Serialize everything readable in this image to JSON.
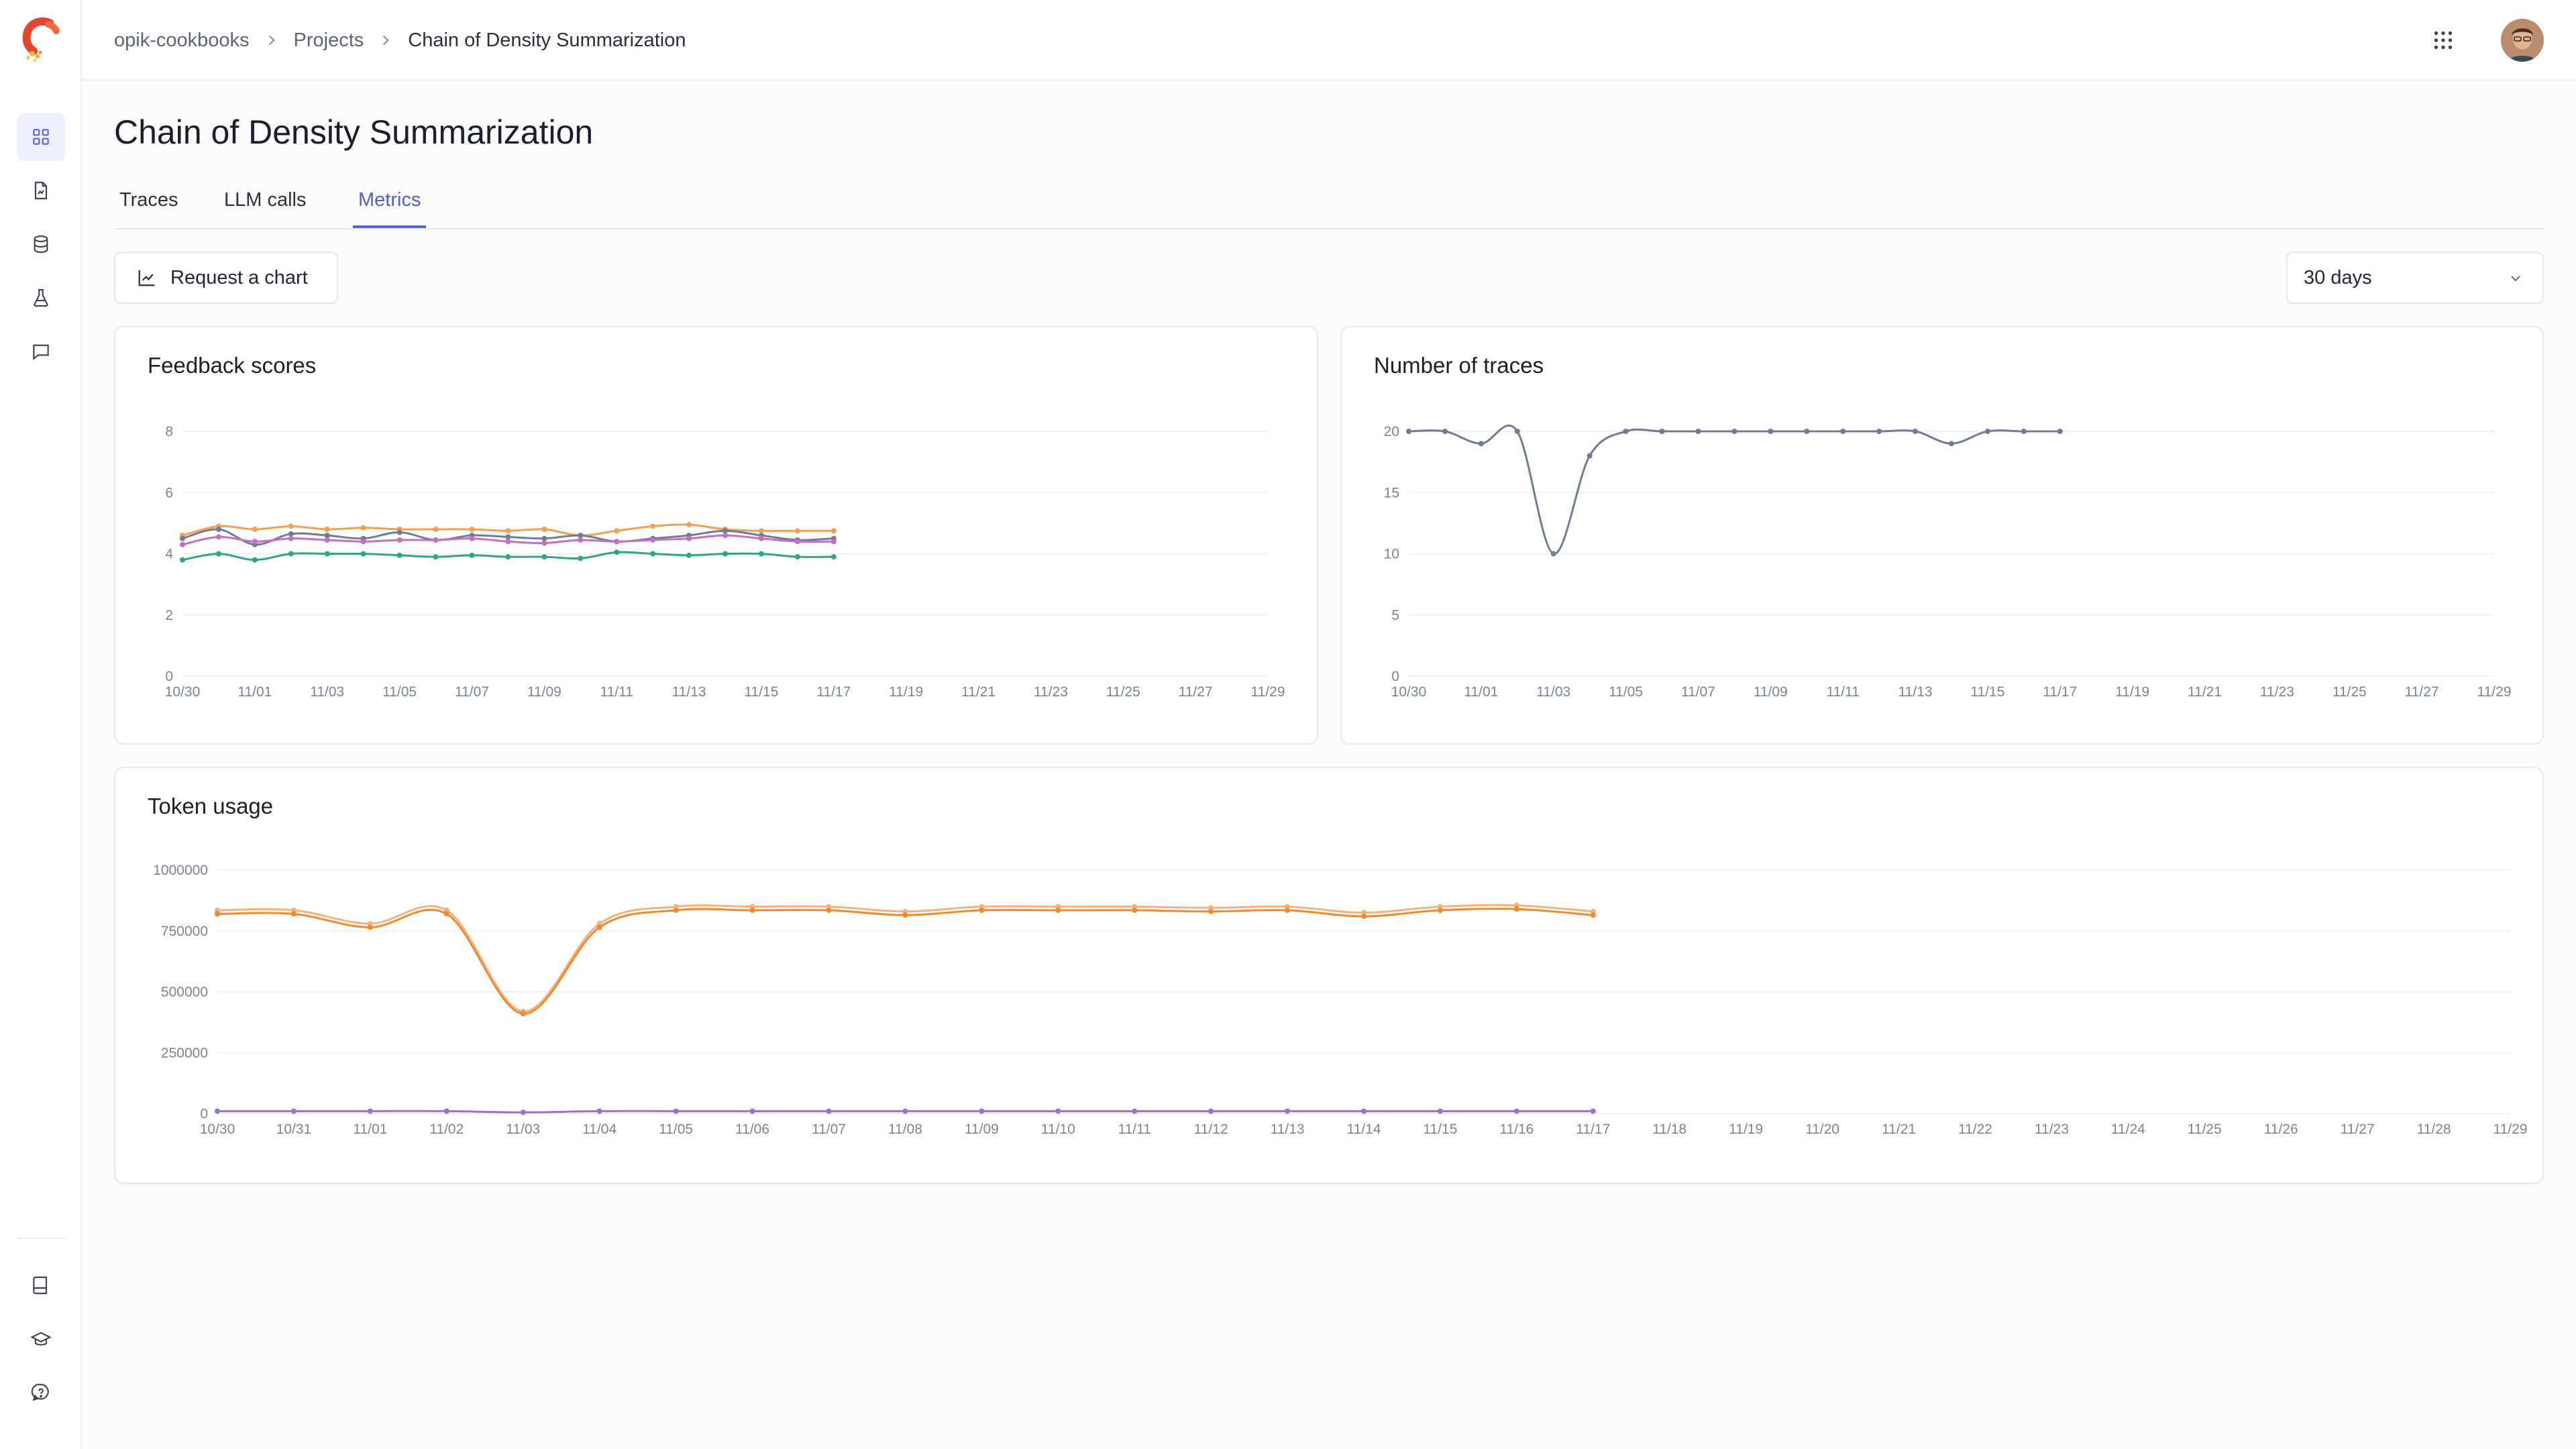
{
  "breadcrumb": {
    "workspace": "opik-cookbooks",
    "section": "Projects",
    "current": "Chain of Density Summarization"
  },
  "page": {
    "title": "Chain of Density Summarization"
  },
  "tabs": [
    {
      "label": "Traces"
    },
    {
      "label": "LLM calls"
    },
    {
      "label": "Metrics",
      "active": true
    }
  ],
  "toolbar": {
    "request_chart_label": "Request a chart",
    "range_value": "30 days"
  },
  "sidebar": {
    "items": [
      {
        "icon": "dashboard-grid-icon",
        "active": true
      },
      {
        "icon": "file-chart-icon"
      },
      {
        "icon": "database-icon"
      },
      {
        "icon": "flask-icon"
      },
      {
        "icon": "message-square-icon"
      }
    ],
    "bottom_items": [
      {
        "icon": "book-icon"
      },
      {
        "icon": "graduation-cap-icon"
      },
      {
        "icon": "help-circle-icon"
      }
    ]
  },
  "colors": {
    "accent": "#5366d8",
    "series_orange": "#f2a052",
    "series_pink": "#c86ec0",
    "series_slate": "#6f7b99",
    "series_green": "#2fa77e",
    "series_purple": "#9a6fd8"
  },
  "chart_data": [
    {
      "title": "Feedback scores",
      "type": "line",
      "x_ticks": [
        "10/30",
        "11/01",
        "11/03",
        "11/05",
        "11/07",
        "11/09",
        "11/11",
        "11/13",
        "11/15",
        "11/17",
        "11/19",
        "11/21",
        "11/23",
        "11/25",
        "11/27",
        "11/29"
      ],
      "y_ticks": [
        0,
        2,
        4,
        6,
        8
      ],
      "ylim": [
        0,
        8
      ],
      "x": [
        "10/30",
        "10/31",
        "11/01",
        "11/02",
        "11/03",
        "11/04",
        "11/05",
        "11/06",
        "11/07",
        "11/08",
        "11/09",
        "11/10",
        "11/11",
        "11/12",
        "11/13",
        "11/14",
        "11/15",
        "11/16",
        "11/17"
      ],
      "series": [
        {
          "color": "#f2a052",
          "values": [
            4.6,
            4.9,
            4.8,
            4.9,
            4.8,
            4.85,
            4.8,
            4.8,
            4.8,
            4.75,
            4.8,
            4.6,
            4.75,
            4.9,
            4.95,
            4.8,
            4.75,
            4.75,
            4.75
          ]
        },
        {
          "color": "#6f7b99",
          "values": [
            4.5,
            4.8,
            4.3,
            4.65,
            4.6,
            4.5,
            4.7,
            4.45,
            4.6,
            4.55,
            4.5,
            4.6,
            4.4,
            4.5,
            4.6,
            4.75,
            4.6,
            4.45,
            4.5
          ]
        },
        {
          "color": "#c86ec0",
          "values": [
            4.3,
            4.55,
            4.4,
            4.5,
            4.45,
            4.4,
            4.45,
            4.45,
            4.5,
            4.4,
            4.35,
            4.45,
            4.4,
            4.45,
            4.5,
            4.6,
            4.5,
            4.4,
            4.4
          ]
        },
        {
          "color": "#2fa77e",
          "values": [
            3.8,
            4.0,
            3.8,
            4.0,
            4.0,
            4.0,
            3.95,
            3.9,
            3.95,
            3.9,
            3.9,
            3.85,
            4.05,
            4.0,
            3.95,
            4.0,
            4.0,
            3.9,
            3.9
          ]
        }
      ]
    },
    {
      "title": "Number of traces",
      "type": "line",
      "x_ticks": [
        "10/30",
        "11/01",
        "11/03",
        "11/05",
        "11/07",
        "11/09",
        "11/11",
        "11/13",
        "11/15",
        "11/17",
        "11/19",
        "11/21",
        "11/23",
        "11/25",
        "11/27",
        "11/29"
      ],
      "y_ticks": [
        0,
        5,
        10,
        15,
        20
      ],
      "ylim": [
        0,
        20
      ],
      "x": [
        "10/30",
        "10/31",
        "11/01",
        "11/02",
        "11/03",
        "11/04",
        "11/05",
        "11/06",
        "11/07",
        "11/08",
        "11/09",
        "11/10",
        "11/11",
        "11/12",
        "11/13",
        "11/14",
        "11/15",
        "11/16",
        "11/17"
      ],
      "series": [
        {
          "color": "#6f7b99",
          "values": [
            20,
            20,
            19,
            20,
            10,
            18,
            20,
            20,
            20,
            20,
            20,
            20,
            20,
            20,
            20,
            19,
            20,
            20,
            20
          ]
        }
      ]
    },
    {
      "title": "Token usage",
      "type": "line",
      "x_ticks": [
        "10/30",
        "10/31",
        "11/01",
        "11/02",
        "11/03",
        "11/04",
        "11/05",
        "11/06",
        "11/07",
        "11/08",
        "11/09",
        "11/10",
        "11/11",
        "11/12",
        "11/13",
        "11/14",
        "11/15",
        "11/16",
        "11/17",
        "11/18",
        "11/19",
        "11/20",
        "11/21",
        "11/22",
        "11/23",
        "11/24",
        "11/25",
        "11/26",
        "11/27",
        "11/28",
        "11/29"
      ],
      "y_ticks": [
        0,
        250000,
        500000,
        750000,
        1000000
      ],
      "ylim": [
        0,
        1000000
      ],
      "x": [
        "10/30",
        "10/31",
        "11/01",
        "11/02",
        "11/03",
        "11/04",
        "11/05",
        "11/06",
        "11/07",
        "11/08",
        "11/09",
        "11/10",
        "11/11",
        "11/12",
        "11/13",
        "11/14",
        "11/15",
        "11/16",
        "11/17"
      ],
      "series": [
        {
          "color": "#f6b27a",
          "values": [
            835000,
            835000,
            780000,
            835000,
            420000,
            780000,
            850000,
            850000,
            850000,
            830000,
            850000,
            850000,
            850000,
            845000,
            850000,
            825000,
            850000,
            855000,
            830000
          ]
        },
        {
          "color": "#f08a2e",
          "values": [
            820000,
            820000,
            765000,
            820000,
            410000,
            765000,
            835000,
            835000,
            835000,
            815000,
            835000,
            835000,
            835000,
            830000,
            835000,
            810000,
            835000,
            840000,
            815000
          ]
        },
        {
          "color": "#9a6fd8",
          "values": [
            10000,
            10000,
            10000,
            10000,
            5000,
            10000,
            10000,
            10000,
            10000,
            10000,
            10000,
            10000,
            10000,
            10000,
            10000,
            10000,
            10000,
            10000,
            10000
          ]
        }
      ]
    }
  ]
}
